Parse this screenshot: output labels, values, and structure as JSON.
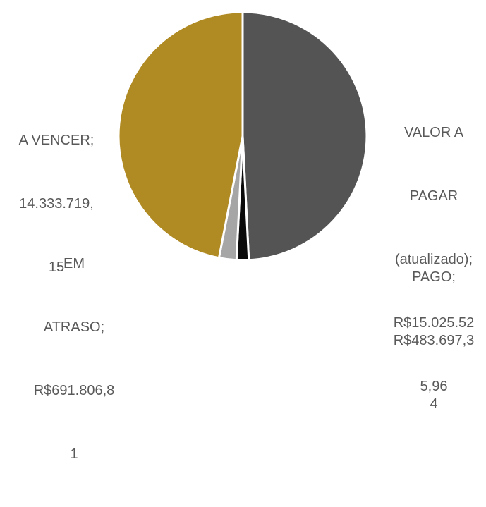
{
  "chart_data": {
    "type": "pie",
    "title": "",
    "start_angle_deg": 0,
    "direction": "clockwise",
    "slices": [
      {
        "name": "VALOR A PAGAR (atualizado)",
        "value": 15025525.96,
        "color": "#545454",
        "label_lines": [
          "VALOR A",
          "PAGAR",
          "(atualizado);",
          "R$15.025.52",
          "5,96"
        ]
      },
      {
        "name": "PAGO",
        "value": 483697.34,
        "color": "#0a0a0a",
        "label_lines": [
          "PAGO;",
          "R$483.697,3",
          "4"
        ]
      },
      {
        "name": "EM ATRASO",
        "value": 691806.81,
        "color": "#a6a6a6",
        "label_lines": [
          "EM",
          "ATRASO;",
          "R$691.806,8",
          "1"
        ]
      },
      {
        "name": "A VENCER",
        "value": 14333719.15,
        "color": "#b08a22",
        "label_lines": [
          "A VENCER;",
          "14.333.719,",
          "15"
        ]
      }
    ],
    "legend": "none"
  }
}
